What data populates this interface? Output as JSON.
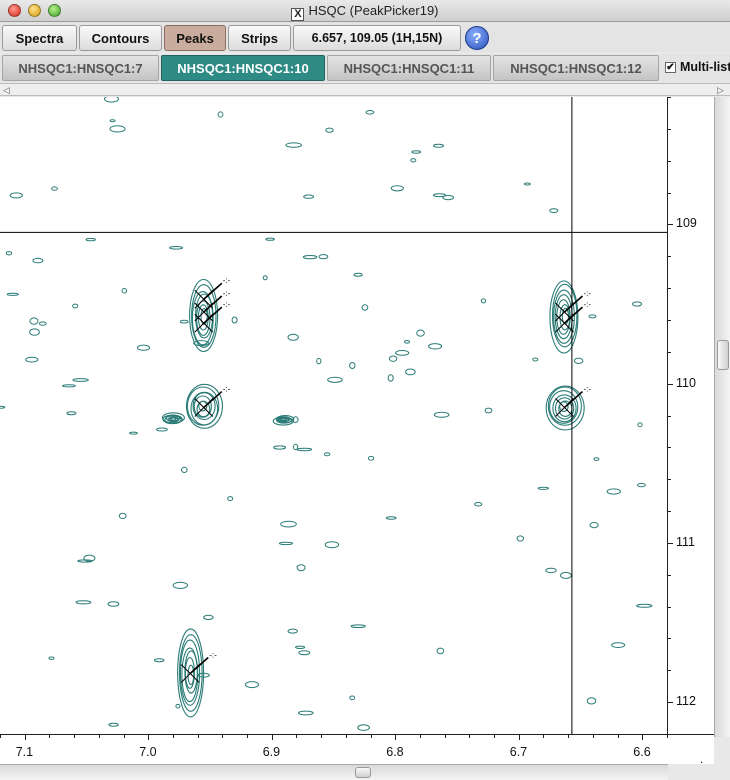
{
  "window": {
    "title": "HSQC (PeakPicker19)",
    "title_icon": "x11-icon"
  },
  "toolbar": {
    "spectra_label": "Spectra",
    "contours_label": "Contours",
    "peaks_label": "Peaks",
    "strips_label": "Strips",
    "coordinates": "6.657, 109.05 (1H,15N)",
    "help_label": "?",
    "active_accent": "#c9ac9d"
  },
  "tabs": [
    {
      "label": "NHSQC1:HNSQC1:7",
      "active": false
    },
    {
      "label": "NHSQC1:HNSQC1:10",
      "active": true
    },
    {
      "label": "NHSQC1:HNSQC1:11",
      "active": false
    },
    {
      "label": "NHSQC1:HNSQC1:12",
      "active": false
    }
  ],
  "tab_active_color": "#2d8a84",
  "multilist": {
    "label": "Multi-list",
    "checked": true
  },
  "spectrum": {
    "contour_color": "#2a7b76",
    "crosshair": {
      "h_ppm": 6.657,
      "n_ppm": 109.05
    },
    "x_axis": {
      "ticks": [
        "7.1",
        "7.0",
        "6.9",
        "6.8",
        "6.7",
        "6.6"
      ],
      "range": [
        7.12,
        6.58
      ]
    },
    "y_axis": {
      "ticks": [
        "109",
        "110",
        "111",
        "112"
      ],
      "range": [
        108.2,
        112.2
      ]
    },
    "peaks": [
      {
        "h": 6.955,
        "n": 109.47,
        "label": "-:-"
      },
      {
        "h": 6.955,
        "n": 109.55,
        "label": "-:-"
      },
      {
        "h": 6.955,
        "n": 109.62,
        "label": "-:-"
      },
      {
        "h": 6.955,
        "n": 110.15,
        "label": "-:-"
      },
      {
        "h": 6.663,
        "n": 109.55,
        "label": "-:-"
      },
      {
        "h": 6.663,
        "n": 109.62,
        "label": "-:-"
      },
      {
        "h": 6.663,
        "n": 110.15,
        "label": "-:-"
      },
      {
        "h": 6.966,
        "n": 111.82,
        "label": "-:-"
      }
    ]
  },
  "corner_mark": "."
}
